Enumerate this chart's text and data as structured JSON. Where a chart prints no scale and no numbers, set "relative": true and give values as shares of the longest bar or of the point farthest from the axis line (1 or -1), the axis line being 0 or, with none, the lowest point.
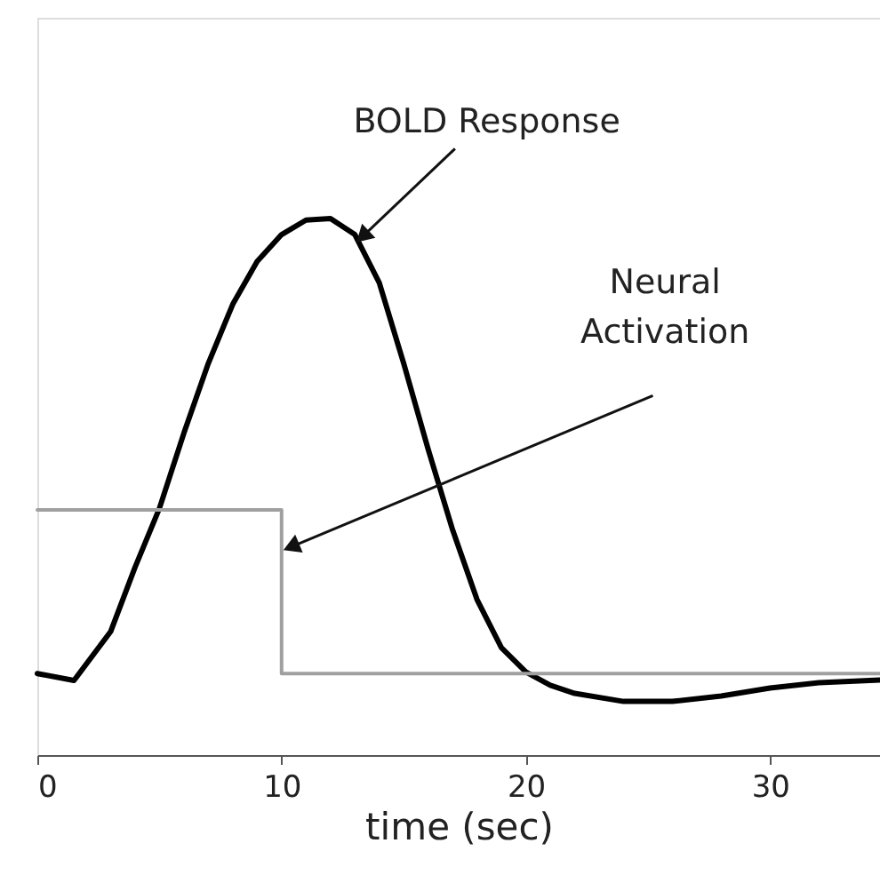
{
  "chart_data": {
    "type": "line",
    "relative": true,
    "xlabel": "time (sec)",
    "xlim": [
      0,
      34.5
    ],
    "xticks": [
      0,
      10,
      20,
      30
    ],
    "grid": false,
    "marker": "none",
    "line_style": "solid",
    "series": [
      {
        "color": "#000000",
        "x": [
          0,
          1.5,
          3,
          4,
          5,
          6,
          7,
          8,
          9,
          10,
          11,
          12,
          13,
          14,
          15,
          16,
          17,
          18,
          19,
          20,
          21,
          22,
          24,
          26,
          28,
          30,
          32,
          34.5
        ],
        "values": [
          0.152,
          0.139,
          0.23,
          0.35,
          0.46,
          0.6,
          0.73,
          0.84,
          0.92,
          0.97,
          0.997,
          1,
          0.97,
          0.88,
          0.73,
          0.57,
          0.42,
          0.29,
          0.2,
          0.155,
          0.13,
          0.115,
          0.1,
          0.1,
          0.11,
          0.125,
          0.135,
          0.14
        ]
      },
      {
        "type": "step",
        "color": "#a0a0a0",
        "x": [
          0,
          10,
          34.5
        ],
        "values": [
          0.457,
          0.152,
          0.152
        ]
      }
    ],
    "annotations": [
      {
        "text": "BOLD Response",
        "x": 13.4,
        "y": 0.97
      },
      {
        "text": "Neural Activation",
        "x": 10.5,
        "y": 0.39
      }
    ]
  }
}
